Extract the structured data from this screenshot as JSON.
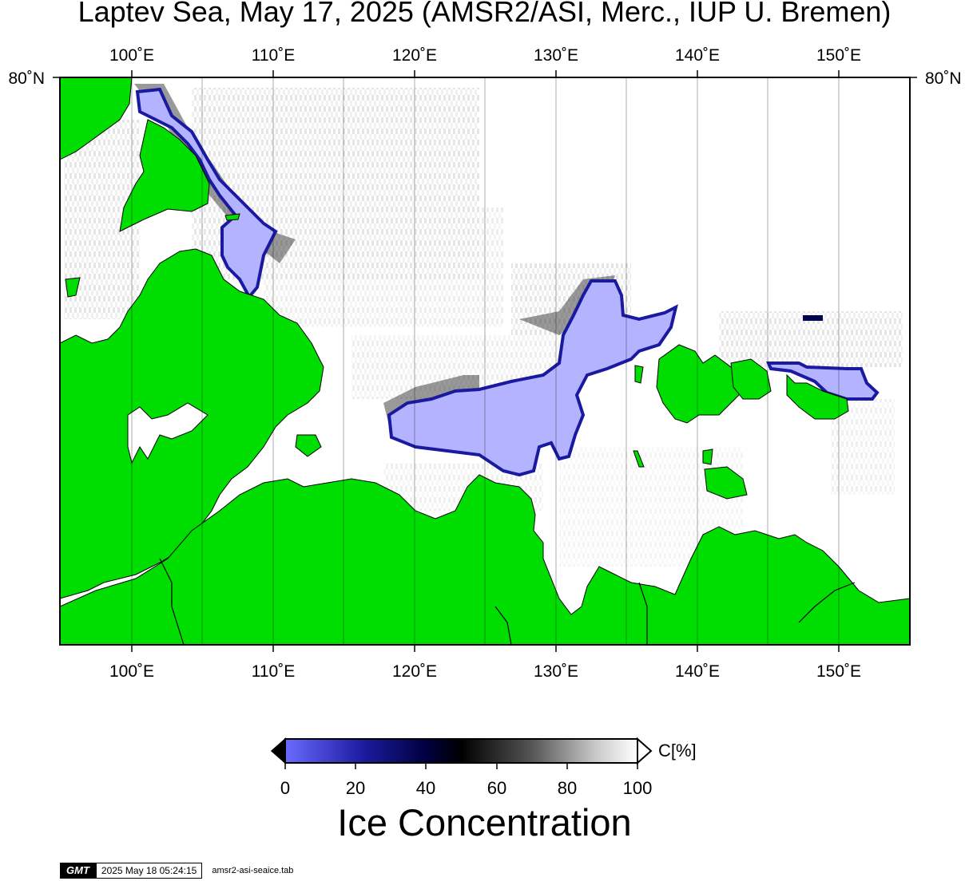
{
  "title": "Laptev Sea, May 17, 2025 (AMSR2/ASI, Merc., IUP U. Bremen)",
  "map": {
    "lon_labels": [
      "100˚E",
      "110˚E",
      "120˚E",
      "130˚E",
      "140˚E",
      "150˚E"
    ],
    "lat_label_left": "80˚N",
    "lat_label_right": "80˚N",
    "colors": {
      "land": "#00dd00",
      "open_water": "#ffffff",
      "low_conc": "#b3b3ff"
    }
  },
  "colorbar": {
    "unit": "C[%]",
    "ticks": [
      "0",
      "20",
      "40",
      "60",
      "80",
      "100"
    ],
    "title": "Ice Concentration"
  },
  "footer": {
    "logo": "GMT",
    "timestamp": "2025 May 18 05:24:15",
    "filename": "amsr2-asi-seaice.tab"
  }
}
